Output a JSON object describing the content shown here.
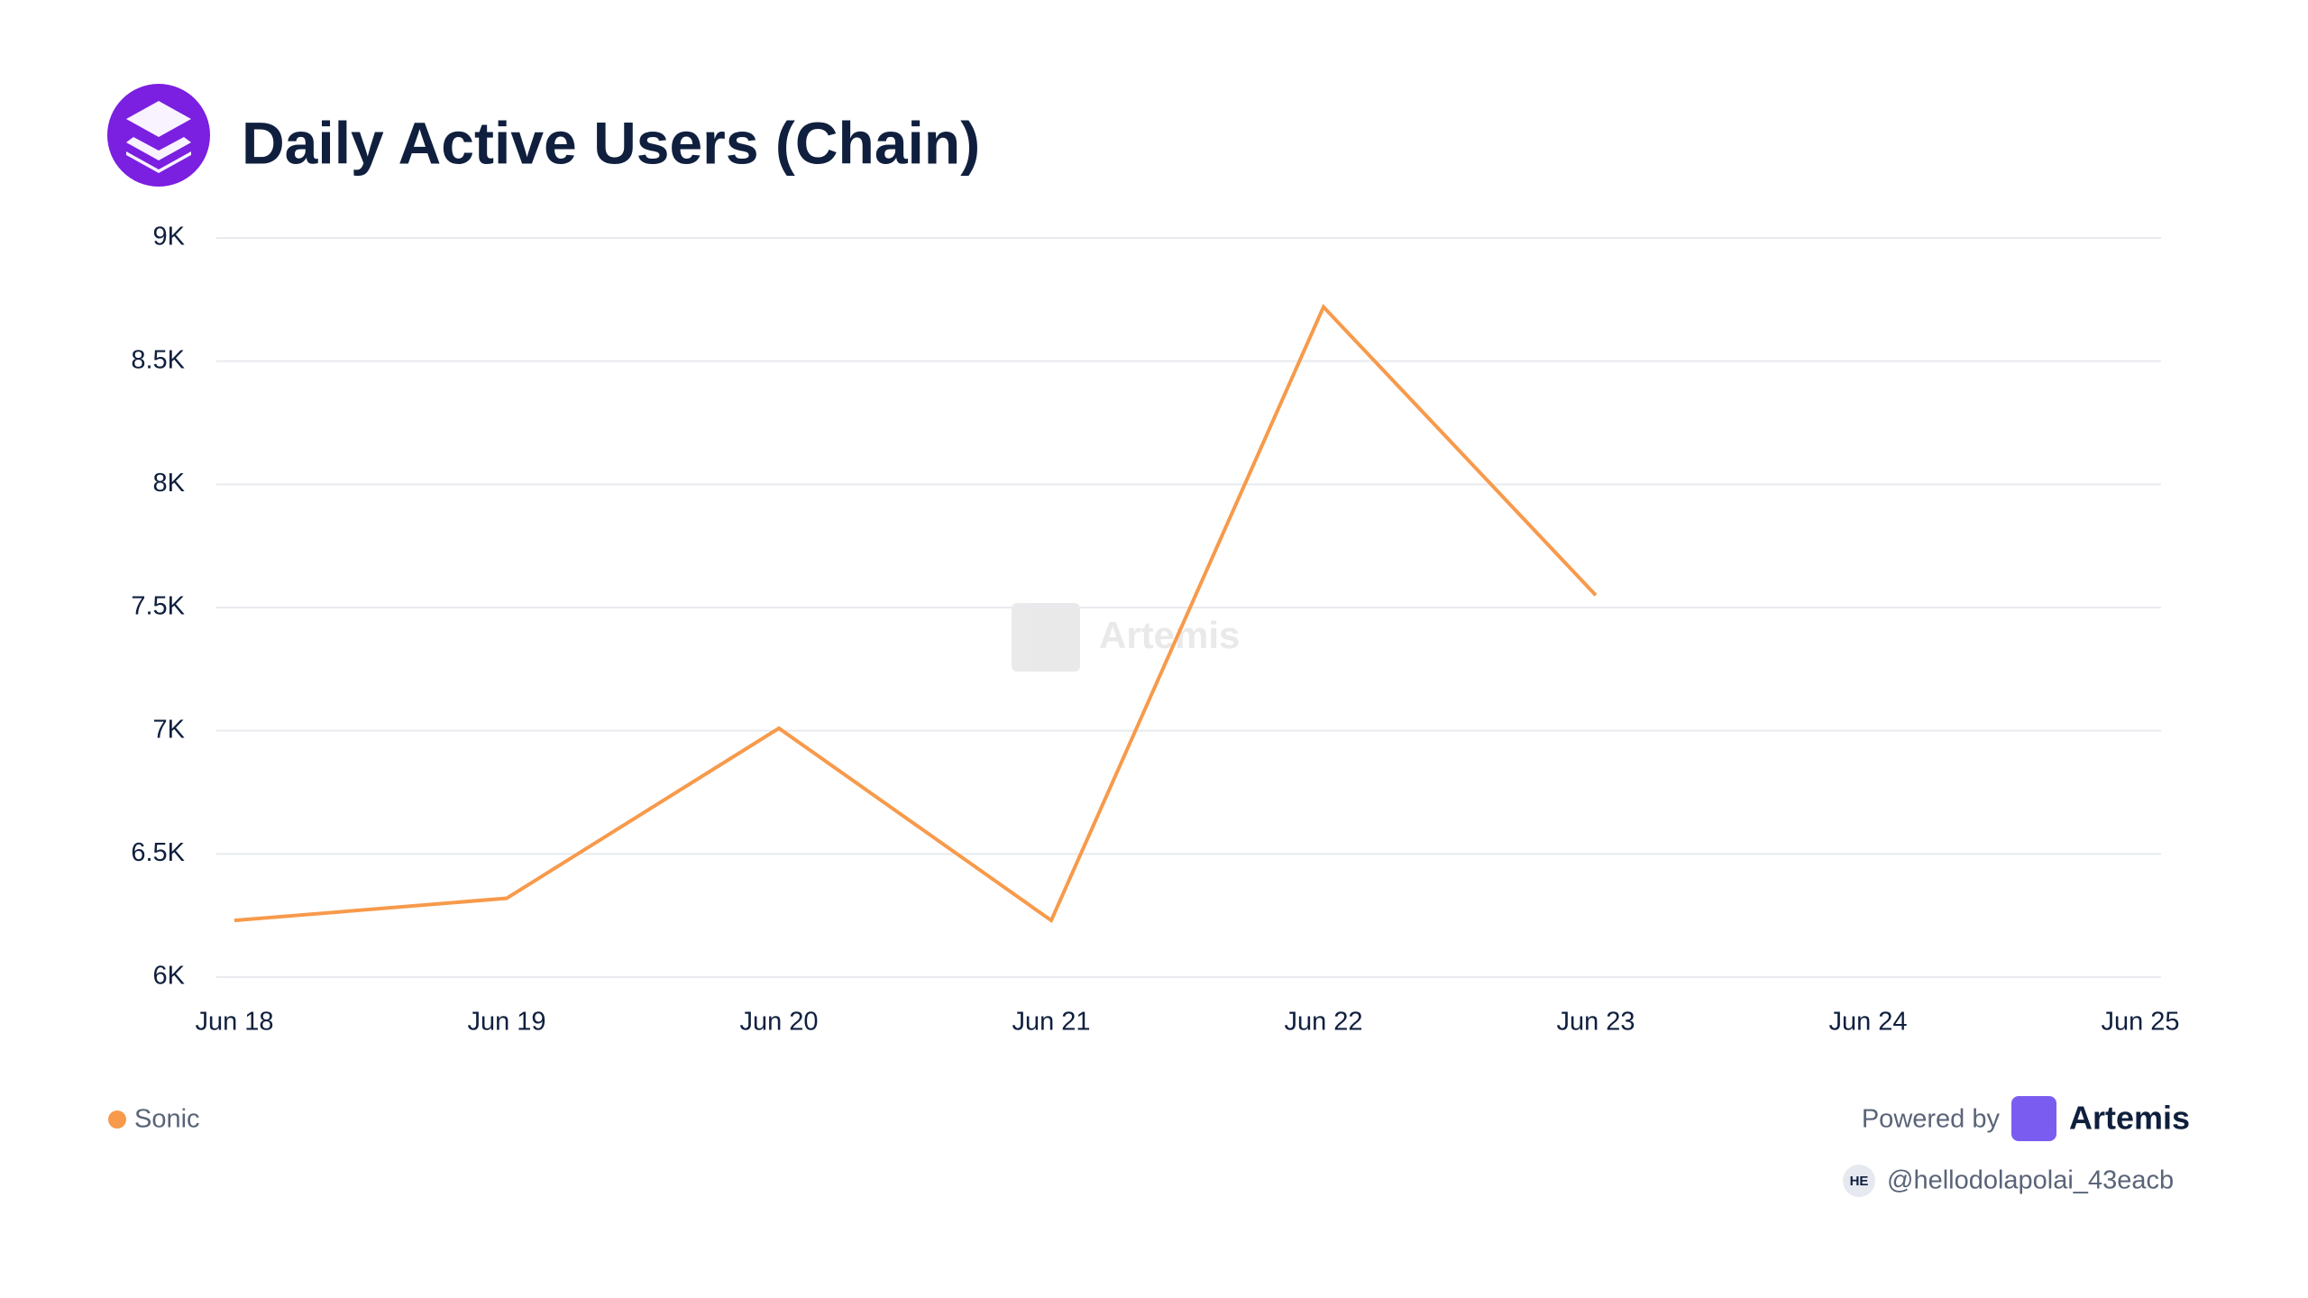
{
  "chart_data": {
    "type": "line",
    "title": "Daily Active Users (Chain)",
    "categories": [
      "Jun 18",
      "Jun 19",
      "Jun 20",
      "Jun 21",
      "Jun 22",
      "Jun 23",
      "Jun 24",
      "Jun 25"
    ],
    "series": [
      {
        "name": "Sonic",
        "color": "#f79a4b",
        "values": [
          6230,
          6320,
          7010,
          6230,
          8720,
          7550,
          null,
          null
        ]
      }
    ],
    "ylim": [
      6000,
      9000
    ],
    "yticks": [
      {
        "value": 6000,
        "label": "6K"
      },
      {
        "value": 6500,
        "label": "6.5K"
      },
      {
        "value": 7000,
        "label": "7K"
      },
      {
        "value": 7500,
        "label": "7.5K"
      },
      {
        "value": 8000,
        "label": "8K"
      },
      {
        "value": 8500,
        "label": "8.5K"
      },
      {
        "value": 9000,
        "label": "9K"
      }
    ],
    "grid": true
  },
  "branding": {
    "watermark": "Artemis",
    "powered_by": "Powered by",
    "brand": "Artemis",
    "user_badge": "HE",
    "user": "@hellodolapolai_43eacb"
  }
}
